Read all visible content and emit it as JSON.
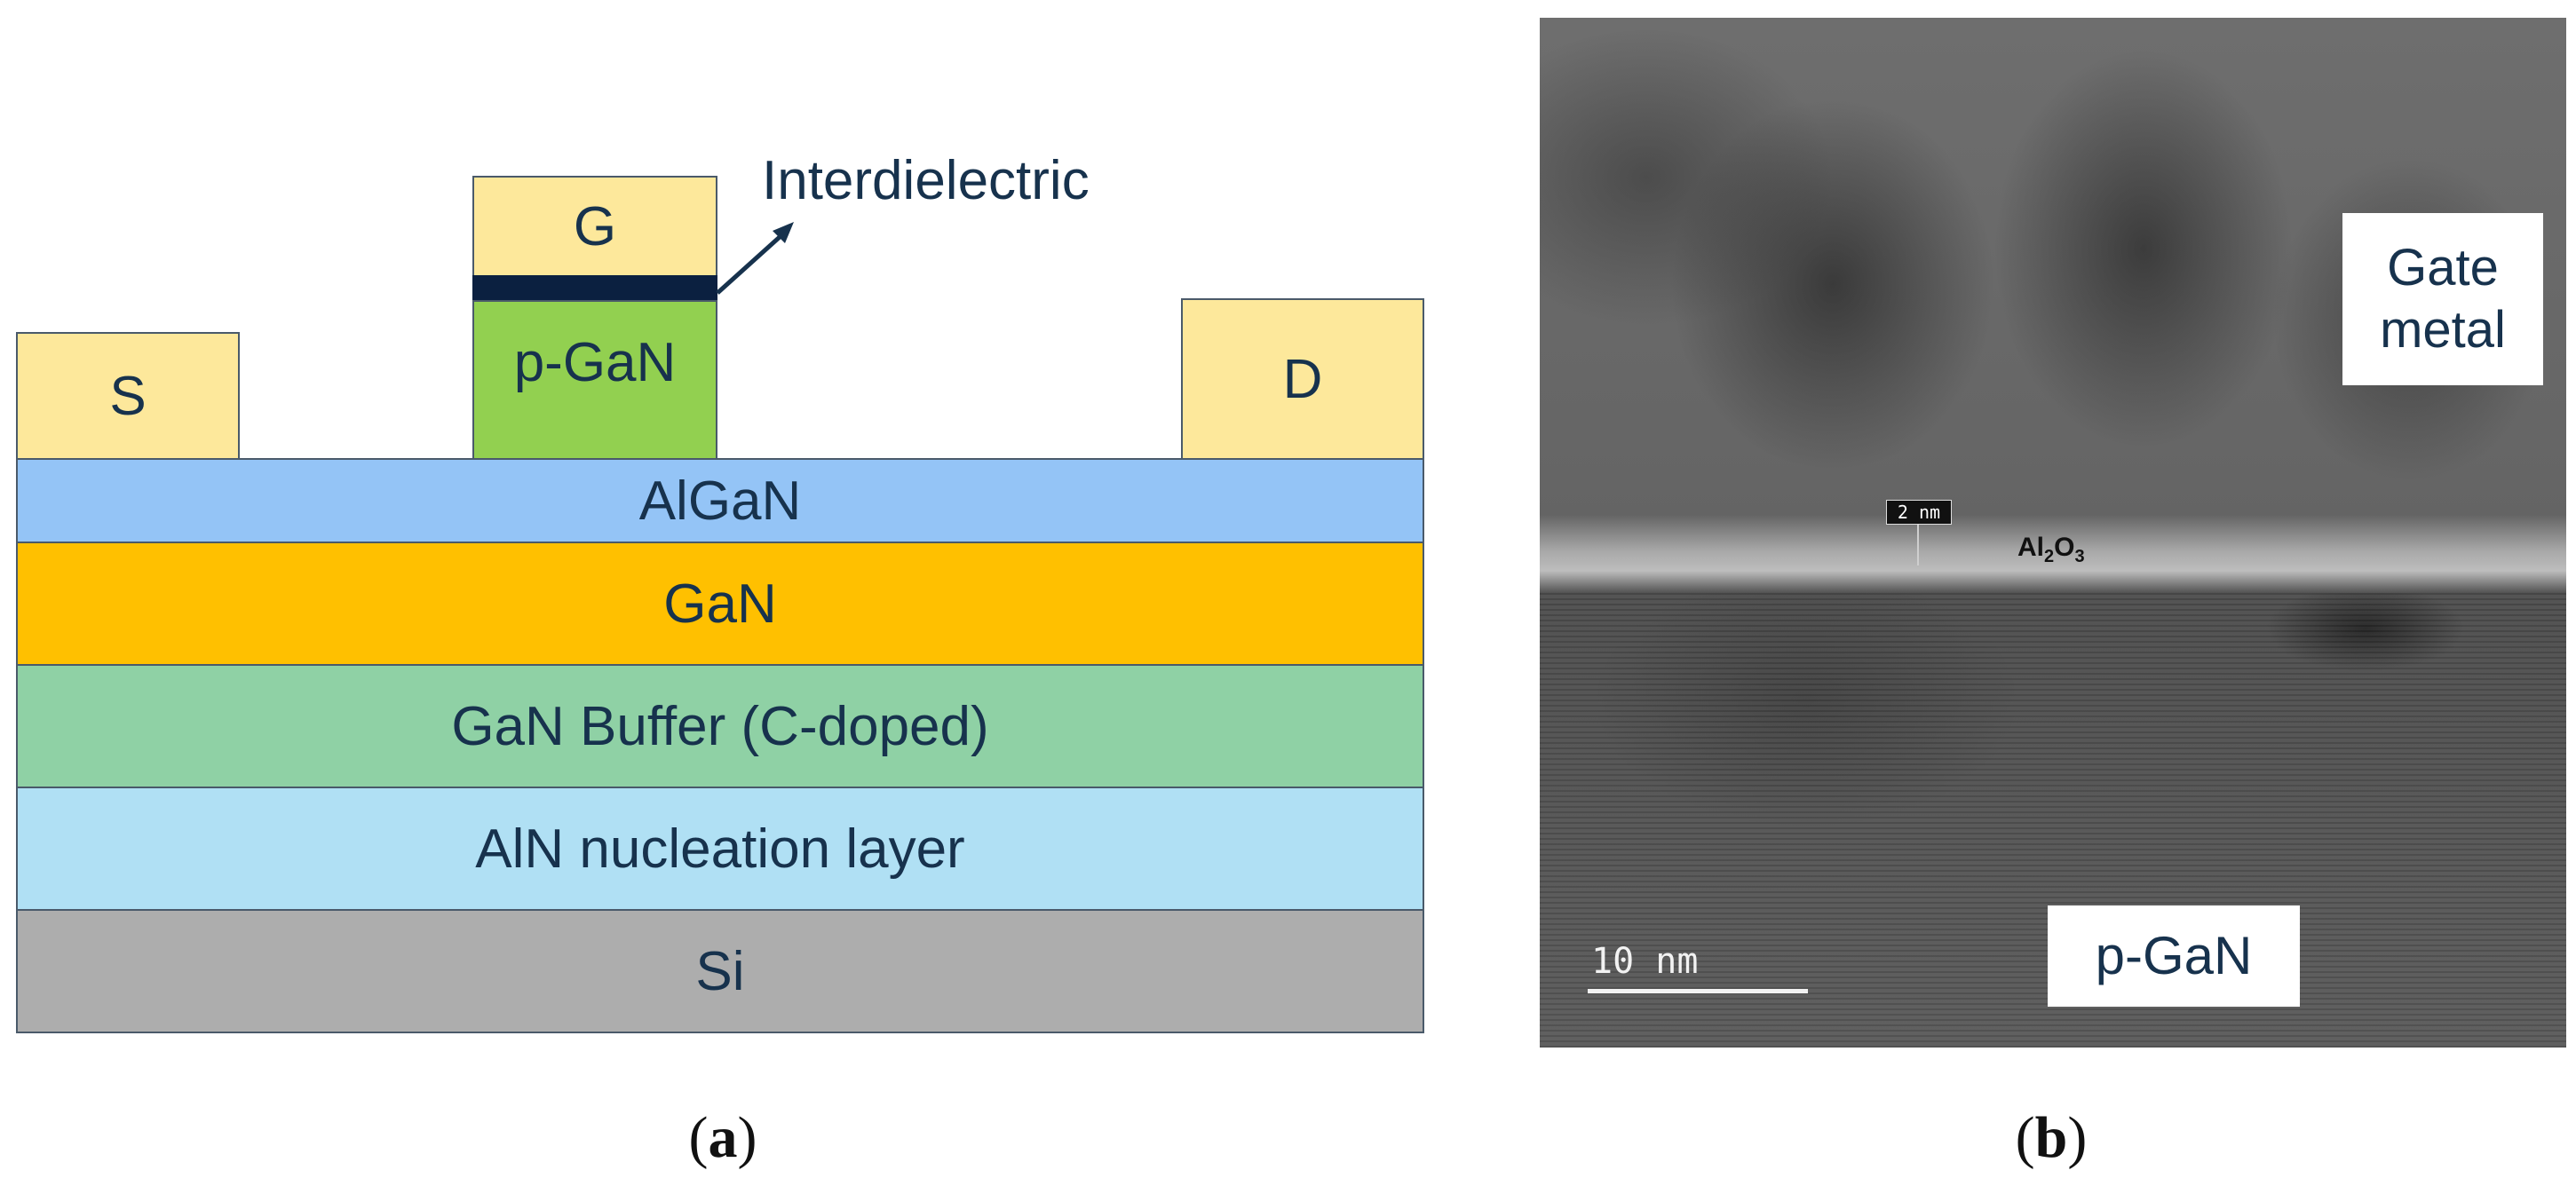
{
  "diagram_a": {
    "contacts": {
      "source": "S",
      "gate": "G",
      "drain": "D",
      "pgan": "p-GaN",
      "interdielectric": "Interdielectric"
    },
    "layers": [
      {
        "label": "AlGaN",
        "color": "#94c4f6"
      },
      {
        "label": "GaN",
        "color": "#ffc000"
      },
      {
        "label": "GaN Buffer (C-doped)",
        "color": "#8fd1a5"
      },
      {
        "label": "AlN nucleation layer",
        "color": "#b0e0f4"
      },
      {
        "label": "Si",
        "color": "#adadad"
      }
    ],
    "colors": {
      "contact": "#fde89b",
      "pgan": "#92d050",
      "interdielectric": "#0b2040"
    },
    "panel_label": {
      "open": "(",
      "letter": "a",
      "close": ")"
    }
  },
  "diagram_b": {
    "gate_metal": [
      "Gate",
      "metal"
    ],
    "pgan": "p-GaN",
    "oxide": {
      "base": "Al",
      "sub1": "2",
      "mid": "O",
      "sub2": "3"
    },
    "inset_scale": "2 nm",
    "scale_bar": "10 nm",
    "panel_label": {
      "open": "(",
      "letter": "b",
      "close": ")"
    }
  }
}
